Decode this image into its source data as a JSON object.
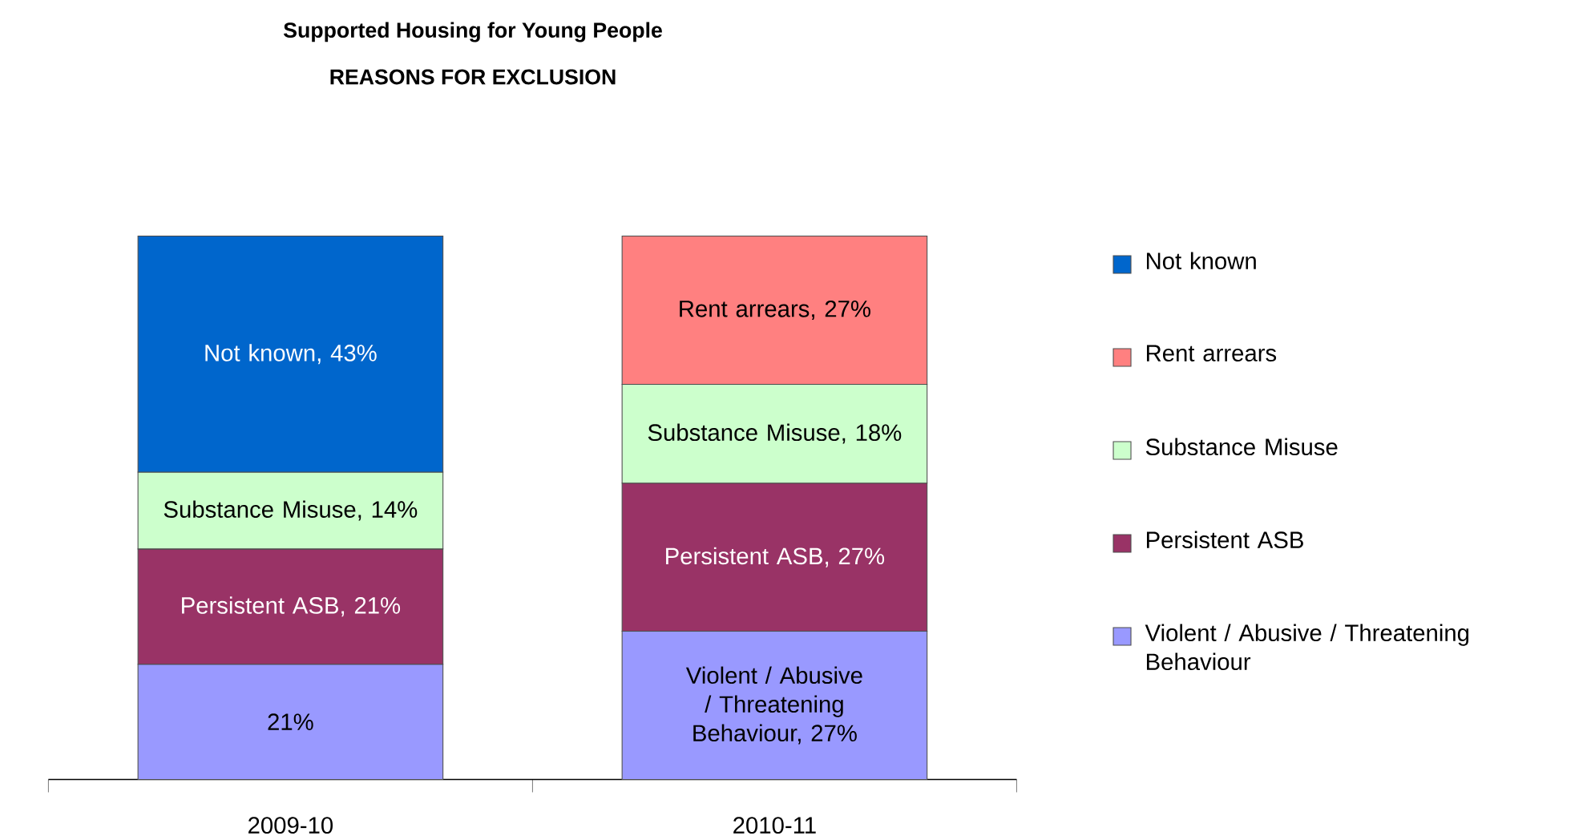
{
  "chart_data": {
    "type": "bar",
    "stacked": true,
    "title": "Supported Housing for Young People",
    "subtitle": "REASONS FOR EXCLUSION",
    "categories": [
      "2009-10",
      "2010-11"
    ],
    "legend": "right",
    "series": [
      {
        "name": "Violent / Abusive / Threatening Behaviour",
        "color": "#9999ff",
        "values": [
          21,
          27
        ],
        "value_labels": [
          "21%",
          "Violent / Abusive / Threatening Behaviour, 27%"
        ]
      },
      {
        "name": "Persistent ASB",
        "color": "#993366",
        "values": [
          21,
          27
        ],
        "value_labels": [
          "Persistent ASB, 21%",
          "Persistent ASB, 27%"
        ]
      },
      {
        "name": "Substance Misuse",
        "color": "#ccffcc",
        "values": [
          14,
          18
        ],
        "value_labels": [
          "Substance Misuse, 14%",
          "Substance Misuse, 18%"
        ]
      },
      {
        "name": "Rent arrears",
        "color": "#ff8080",
        "values": [
          null,
          27
        ],
        "value_labels": [
          null,
          "Rent arrears, 27%"
        ]
      },
      {
        "name": "Not known",
        "color": "#0066cc",
        "values": [
          43,
          null
        ],
        "value_labels": [
          "Not known, 43%",
          null
        ]
      }
    ]
  }
}
